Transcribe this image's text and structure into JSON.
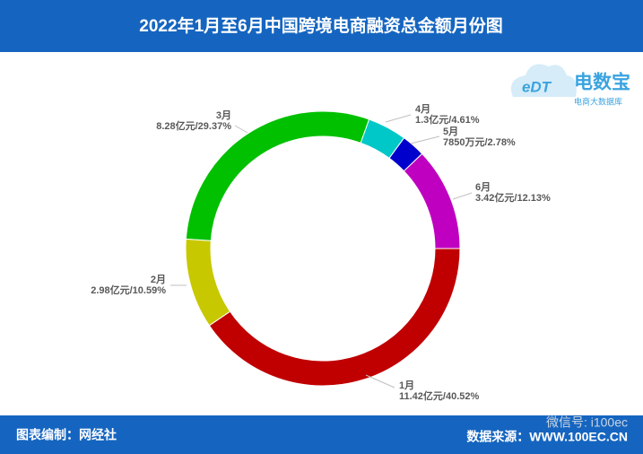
{
  "chart_data": {
    "type": "pie",
    "title": "2022年1月至6月中国跨境电商融资总金额月份图",
    "categories": [
      "1月",
      "2月",
      "3月",
      "4月",
      "5月",
      "6月"
    ],
    "values": [
      40.52,
      10.59,
      29.37,
      4.61,
      2.78,
      12.13
    ],
    "value_labels": [
      "11.42亿元/40.52%",
      "2.98亿元/10.59%",
      "8.28亿元/29.37%",
      "1.3亿元/4.61%",
      "7850万元/2.78%",
      "3.42亿元/12.13%"
    ],
    "colors": [
      "#c00000",
      "#c8c800",
      "#00c000",
      "#00c8c8",
      "#0000cc",
      "#c000c0"
    ]
  },
  "logo": {
    "mark": "eDT",
    "name": "电数宝",
    "tagline": "电商大数据库"
  },
  "footer": {
    "left": "图表编制：网经社",
    "right": "数据来源：WWW.100EC.CN",
    "watermark": "微信号: i100ec"
  }
}
